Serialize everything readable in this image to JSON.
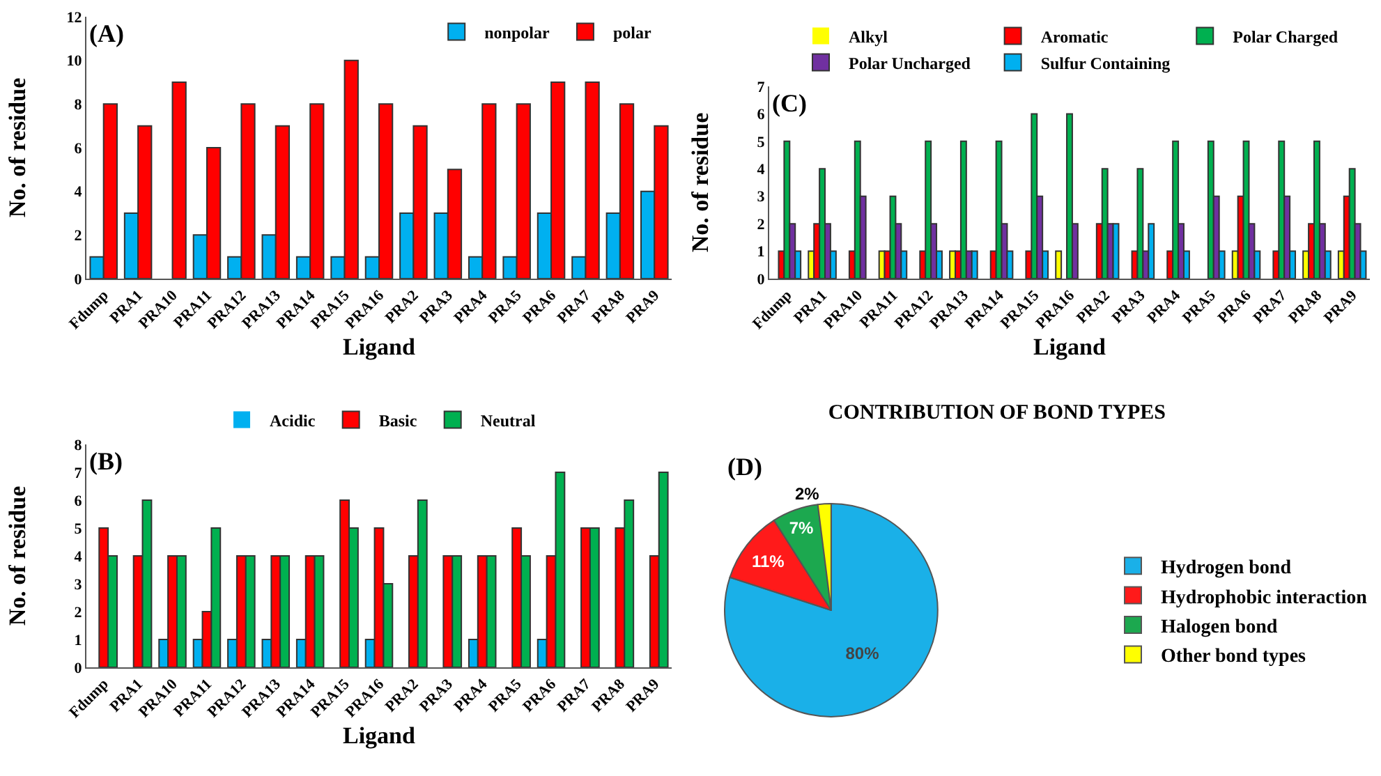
{
  "chart_data": [
    {
      "type": "bar",
      "annotations": [
        "(A)"
      ],
      "xlabel": "Ligand",
      "ylabel": "No. of residue",
      "categories": [
        "Fdump",
        "PRA1",
        "PRA10",
        "PRA11",
        "PRA12",
        "PRA13",
        "PRA14",
        "PRA15",
        "PRA16",
        "PRA2",
        "PRA3",
        "PRA4",
        "PRA5",
        "PRA6",
        "PRA7",
        "PRA8",
        "PRA9"
      ],
      "series": [
        {
          "name": "nonpolar",
          "color": "#00b0f0",
          "values": [
            1,
            3,
            0,
            2,
            1,
            2,
            1,
            1,
            1,
            3,
            3,
            1,
            1,
            3,
            1,
            3,
            4
          ]
        },
        {
          "name": "polar",
          "color": "#ff0000",
          "values": [
            8,
            7,
            9,
            6,
            8,
            7,
            8,
            10,
            8,
            7,
            5,
            8,
            8,
            9,
            9,
            8,
            7
          ]
        }
      ],
      "ylim": [
        0,
        12
      ],
      "yticks": [
        0,
        2,
        4,
        6,
        8,
        10,
        12
      ],
      "grid": false,
      "legend": "top right"
    },
    {
      "type": "bar",
      "annotations": [
        "(C)"
      ],
      "xlabel": "Ligand",
      "ylabel": "No. of residue",
      "categories": [
        "Fdump",
        "PRA1",
        "PRA10",
        "PRA11",
        "PRA12",
        "PRA13",
        "PRA14",
        "PRA15",
        "PRA16",
        "PRA2",
        "PRA3",
        "PRA4",
        "PRA5",
        "PRA6",
        "PRA7",
        "PRA8",
        "PRA9"
      ],
      "series": [
        {
          "name": "Alkyl",
          "color": "#ffff00",
          "values": [
            0,
            1,
            0,
            1,
            0,
            1,
            0,
            0,
            1,
            0,
            0,
            0,
            0,
            1,
            0,
            1,
            1
          ]
        },
        {
          "name": "Aromatic",
          "color": "#ff0000",
          "values": [
            1,
            2,
            1,
            1,
            1,
            1,
            1,
            1,
            0,
            2,
            1,
            1,
            0,
            3,
            1,
            2,
            3
          ]
        },
        {
          "name": "Polar Charged",
          "color": "#00b050",
          "values": [
            5,
            4,
            5,
            3,
            5,
            5,
            5,
            6,
            6,
            4,
            4,
            5,
            5,
            5,
            5,
            5,
            4
          ]
        },
        {
          "name": "Polar Uncharged",
          "color": "#7030a0",
          "values": [
            2,
            2,
            3,
            2,
            2,
            1,
            2,
            3,
            2,
            2,
            1,
            2,
            3,
            2,
            3,
            2,
            2
          ]
        },
        {
          "name": "Sulfur Containing",
          "color": "#00b0f0",
          "values": [
            1,
            1,
            0,
            1,
            1,
            1,
            1,
            1,
            0,
            2,
            2,
            1,
            1,
            1,
            1,
            1,
            1
          ]
        }
      ],
      "ylim": [
        0,
        7
      ],
      "yticks": [
        0,
        1,
        2,
        3,
        4,
        5,
        6,
        7
      ],
      "grid": false,
      "legend": "top"
    },
    {
      "type": "bar",
      "annotations": [
        "(B)"
      ],
      "xlabel": "Ligand",
      "ylabel": "No. of residue",
      "categories": [
        "Fdump",
        "PRA1",
        "PRA10",
        "PRA11",
        "PRA12",
        "PRA13",
        "PRA14",
        "PRA15",
        "PRA16",
        "PRA2",
        "PRA3",
        "PRA4",
        "PRA5",
        "PRA6",
        "PRA7",
        "PRA8",
        "PRA9"
      ],
      "series": [
        {
          "name": "Acidic",
          "color": "#00b0f0",
          "values": [
            0,
            0,
            1,
            1,
            1,
            1,
            1,
            0,
            1,
            0,
            0,
            1,
            0,
            1,
            0,
            0,
            0
          ]
        },
        {
          "name": "Basic",
          "color": "#ff0000",
          "values": [
            5,
            4,
            4,
            2,
            4,
            4,
            4,
            6,
            5,
            4,
            4,
            4,
            5,
            4,
            5,
            5,
            4
          ]
        },
        {
          "name": "Neutral",
          "color": "#00b050",
          "values": [
            4,
            6,
            4,
            5,
            4,
            4,
            4,
            5,
            3,
            6,
            4,
            4,
            4,
            7,
            5,
            6,
            7
          ]
        }
      ],
      "ylim": [
        0,
        8
      ],
      "yticks": [
        0,
        1,
        2,
        3,
        4,
        5,
        6,
        7,
        8
      ],
      "grid": false,
      "legend": "top"
    },
    {
      "type": "pie",
      "title": "CONTRIBUTION OF BOND TYPES",
      "annotations": [
        "(D)"
      ],
      "categories": [
        "Hydrogen bond",
        "Hydrophobic interaction",
        "Halogen bond",
        "Other bond types"
      ],
      "values": [
        80,
        11,
        7,
        2
      ],
      "value_labels": [
        "80%",
        "11%",
        "7%",
        "2%"
      ],
      "colors": [
        "#1ab0e8",
        "#ff1a1a",
        "#1ca84f",
        "#ffff00"
      ],
      "legend": "right"
    }
  ]
}
